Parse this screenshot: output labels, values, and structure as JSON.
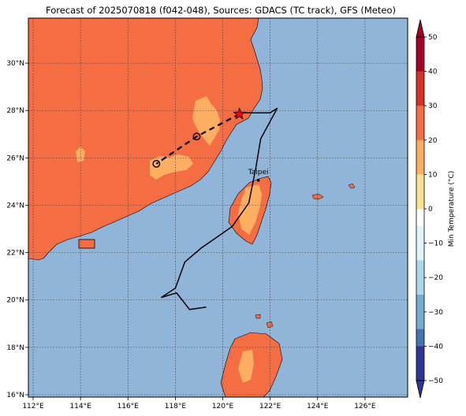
{
  "title": "Forecast of 2025070818 (f042-048), Sources: GDACS (TC track), GFS (Meteo)",
  "colors": {
    "land_warm": "#f46d43",
    "land_warmer_patch": "#fdae61",
    "sea": "#91b4d9",
    "coast": "#000000",
    "track": "#000000",
    "star": "#ff0000"
  },
  "map": {
    "lon_range": [
      111.8,
      127.8
    ],
    "lat_range": [
      15.9,
      31.9
    ],
    "lon_ticks": [
      {
        "value": 112,
        "label": "112°E"
      },
      {
        "value": 114,
        "label": "114°E"
      },
      {
        "value": 116,
        "label": "116°E"
      },
      {
        "value": 118,
        "label": "118°E"
      },
      {
        "value": 120,
        "label": "120°E"
      },
      {
        "value": 122,
        "label": "122°E"
      },
      {
        "value": 124,
        "label": "124°E"
      },
      {
        "value": 126,
        "label": "126°E"
      }
    ],
    "lat_ticks": [
      {
        "value": 16,
        "label": "16°N"
      },
      {
        "value": 18,
        "label": "18°N"
      },
      {
        "value": 20,
        "label": "20°N"
      },
      {
        "value": 22,
        "label": "22°N"
      },
      {
        "value": 24,
        "label": "24°N"
      },
      {
        "value": 26,
        "label": "26°N"
      },
      {
        "value": 28,
        "label": "28°N"
      },
      {
        "value": 30,
        "label": "30°N"
      }
    ],
    "grid": true,
    "city": {
      "name": "Taipei",
      "lon": 121.5,
      "lat": 25.05
    },
    "observed_track": [
      [
        119.3,
        19.7
      ],
      [
        118.6,
        19.6
      ],
      [
        118.05,
        20.3
      ],
      [
        117.4,
        20.1
      ],
      [
        118.0,
        20.5
      ],
      [
        118.4,
        21.6
      ],
      [
        119.1,
        22.2
      ],
      [
        120.4,
        23.1
      ],
      [
        121.1,
        24.1
      ],
      [
        121.4,
        25.6
      ],
      [
        121.6,
        26.8
      ],
      [
        122.3,
        28.1
      ],
      [
        122.0,
        27.9
      ],
      [
        120.8,
        27.9
      ]
    ],
    "forecast_track": [
      [
        120.7,
        27.85
      ],
      [
        118.9,
        26.9
      ],
      [
        117.2,
        25.75
      ]
    ],
    "forecast_points": [
      [
        118.9,
        26.9
      ],
      [
        117.2,
        25.75
      ]
    ],
    "current_position": [
      120.7,
      27.85
    ]
  },
  "colorbar": {
    "label": "Min Temperature (°C)",
    "ticks": [
      "50",
      "40",
      "30",
      "20",
      "10",
      "0",
      "−10",
      "−20",
      "−30",
      "−40",
      "−50"
    ],
    "levels": [
      {
        "from": 45,
        "to": 50,
        "color": "#a50026"
      },
      {
        "from": 40,
        "to": 45,
        "color": "#a50026"
      },
      {
        "from": 35,
        "to": 40,
        "color": "#d73027"
      },
      {
        "from": 30,
        "to": 35,
        "color": "#d73027"
      },
      {
        "from": 25,
        "to": 30,
        "color": "#f46d43"
      },
      {
        "from": 20,
        "to": 25,
        "color": "#f46d43"
      },
      {
        "from": 15,
        "to": 20,
        "color": "#fdae61"
      },
      {
        "from": 10,
        "to": 15,
        "color": "#fdae61"
      },
      {
        "from": 5,
        "to": 10,
        "color": "#fee090"
      },
      {
        "from": 0,
        "to": 5,
        "color": "#fee090"
      },
      {
        "from": -5,
        "to": 0,
        "color": "#ffffff"
      },
      {
        "from": -10,
        "to": -5,
        "color": "#e0f3f8"
      },
      {
        "from": -15,
        "to": -10,
        "color": "#e0f3f8"
      },
      {
        "from": -20,
        "to": -15,
        "color": "#abd9e9"
      },
      {
        "from": -25,
        "to": -20,
        "color": "#abd9e9"
      },
      {
        "from": -30,
        "to": -25,
        "color": "#74add1"
      },
      {
        "from": -35,
        "to": -30,
        "color": "#74add1"
      },
      {
        "from": -40,
        "to": -35,
        "color": "#4575b4"
      },
      {
        "from": -45,
        "to": -40,
        "color": "#313695"
      },
      {
        "from": -50,
        "to": -45,
        "color": "#313695"
      }
    ],
    "range": [
      -50,
      50
    ]
  }
}
